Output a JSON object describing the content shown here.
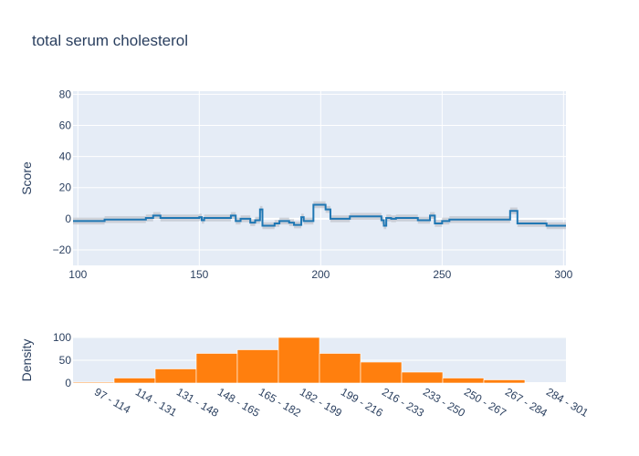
{
  "chart_data": [
    {
      "type": "line",
      "title": "total serum cholesterol",
      "xlabel": "",
      "ylabel": "Score",
      "xlim": [
        98,
        301
      ],
      "ylim": [
        -30,
        82
      ],
      "xticks": [
        100,
        150,
        200,
        250,
        300
      ],
      "yticks": [
        -20,
        0,
        20,
        40,
        60,
        80
      ],
      "grid": true,
      "colors": {
        "line": "#1f77b4",
        "band": "#c0c4cc",
        "plot_bg": "#e5ecf6",
        "grid": "#ffffff"
      },
      "step_points": [
        [
          98,
          -1.5
        ],
        [
          111,
          -1.5
        ],
        [
          111,
          -0.5
        ],
        [
          116,
          -0.5
        ],
        [
          116,
          -0.5
        ],
        [
          128,
          -0.5
        ],
        [
          128,
          0.5
        ],
        [
          131,
          0.5
        ],
        [
          131,
          2.0
        ],
        [
          134,
          2.0
        ],
        [
          134,
          0.5
        ],
        [
          150,
          0.5
        ],
        [
          150,
          1.0
        ],
        [
          151,
          1.0
        ],
        [
          151,
          -1.0
        ],
        [
          152,
          -1.0
        ],
        [
          152,
          0.5
        ],
        [
          163,
          0.5
        ],
        [
          163,
          2.0
        ],
        [
          165,
          2.0
        ],
        [
          165,
          -1.5
        ],
        [
          167,
          -1.5
        ],
        [
          167,
          0.0
        ],
        [
          171,
          0.0
        ],
        [
          171,
          -2.5
        ],
        [
          173,
          -2.5
        ],
        [
          173,
          -1.0
        ],
        [
          175,
          -1.0
        ],
        [
          175,
          6.0
        ],
        [
          176,
          6.0
        ],
        [
          176,
          -4.5
        ],
        [
          181,
          -4.5
        ],
        [
          181,
          -3.0
        ],
        [
          183,
          -3.0
        ],
        [
          183,
          -1.5
        ],
        [
          187,
          -1.5
        ],
        [
          187,
          -2.5
        ],
        [
          189,
          -2.5
        ],
        [
          189,
          -4.0
        ],
        [
          192,
          -4.0
        ],
        [
          192,
          1.0
        ],
        [
          193,
          1.0
        ],
        [
          193,
          -1.5
        ],
        [
          197,
          -1.5
        ],
        [
          197,
          9.0
        ],
        [
          202,
          9.0
        ],
        [
          202,
          6.0
        ],
        [
          204,
          6.0
        ],
        [
          204,
          0.0
        ],
        [
          212,
          0.0
        ],
        [
          212,
          1.5
        ],
        [
          225,
          1.5
        ],
        [
          225,
          -1.0
        ],
        [
          226,
          -1.0
        ],
        [
          226,
          -4.5
        ],
        [
          227,
          -4.5
        ],
        [
          227,
          0.5
        ],
        [
          229,
          0.5
        ],
        [
          229,
          0.0
        ],
        [
          231,
          0.0
        ],
        [
          231,
          0.5
        ],
        [
          240,
          0.5
        ],
        [
          240,
          -1.0
        ],
        [
          245,
          -1.0
        ],
        [
          245,
          2.0
        ],
        [
          247,
          2.0
        ],
        [
          247,
          -3.0
        ],
        [
          250,
          -3.0
        ],
        [
          250,
          -1.5
        ],
        [
          253,
          -1.5
        ],
        [
          253,
          -0.5
        ],
        [
          278,
          -0.5
        ],
        [
          278,
          5.0
        ],
        [
          281,
          5.0
        ],
        [
          281,
          -3.0
        ],
        [
          293,
          -3.0
        ],
        [
          293,
          -4.5
        ],
        [
          301,
          -4.5
        ]
      ]
    },
    {
      "type": "bar",
      "xlabel": "",
      "ylabel": "Density",
      "ylim": [
        0,
        100
      ],
      "yticks": [
        0,
        50,
        100
      ],
      "grid": true,
      "color": "#ff7f0e",
      "categories": [
        "97 - 114",
        "114 - 131",
        "131 - 148",
        "148 - 165",
        "165 - 182",
        "182 - 199",
        "199 - 216",
        "216 - 233",
        "233 - 250",
        "250 - 267",
        "267 - 284",
        "284 - 301"
      ],
      "values": [
        2,
        11,
        31,
        65,
        73,
        100,
        65,
        46,
        24,
        11,
        7,
        1
      ]
    }
  ]
}
